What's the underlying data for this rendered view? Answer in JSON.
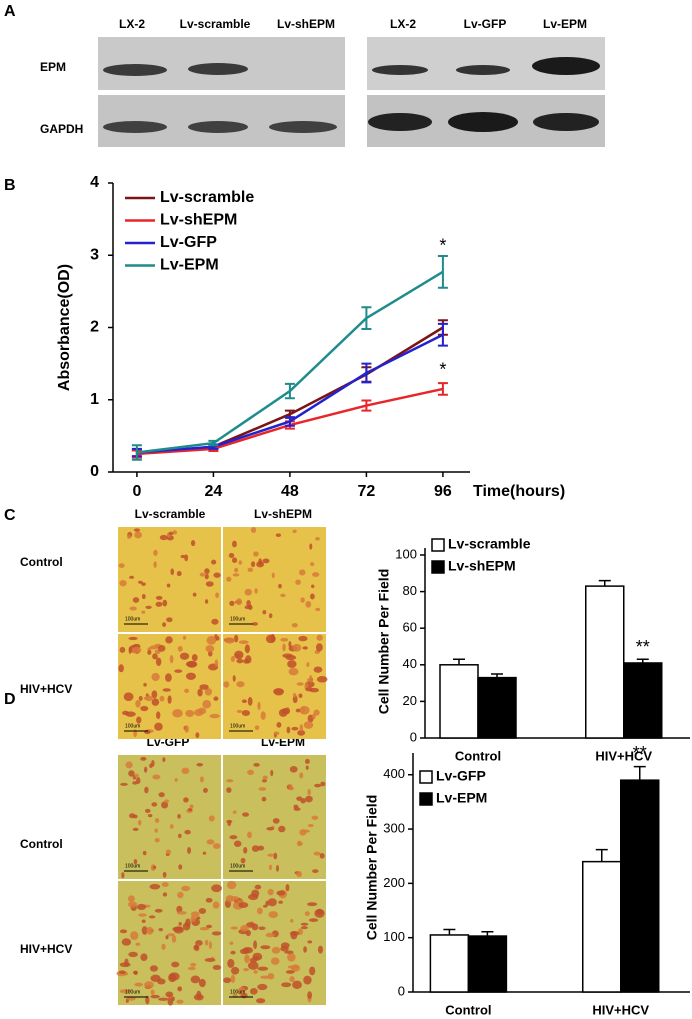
{
  "panel_labels": [
    "A",
    "B",
    "C",
    "D"
  ],
  "blot_a": {
    "rows": [
      "EPM",
      "GAPDH"
    ],
    "left_lanes": [
      "LX-2",
      "Lv-scramble",
      "Lv-shEPM"
    ],
    "right_lanes": [
      "LX-2",
      "Lv-GFP",
      "Lv-EPM"
    ]
  },
  "micro_c": {
    "columns": [
      "Lv-scramble",
      "Lv-shEPM"
    ],
    "rows": [
      "Control",
      "HIV+HCV"
    ],
    "scale_bar": "100um"
  },
  "micro_d": {
    "columns": [
      "Lv-GFP",
      "Lv-EPM"
    ],
    "rows": [
      "Control",
      "HIV+HCV"
    ],
    "scale_bar": "100um"
  },
  "chart_data": [
    {
      "type": "line",
      "x_label": "Time(hours)",
      "y_label": "Absorbance(OD)",
      "x": [
        0,
        24,
        48,
        72,
        96
      ],
      "xlim": [
        -7.5,
        104.5
      ],
      "xticks": [
        0,
        24,
        48,
        72,
        96
      ],
      "ylim": [
        0,
        4
      ],
      "yticks": [
        0,
        1,
        2,
        3,
        4
      ],
      "series": [
        {
          "name": "Lv-scramble",
          "color": "#7b1416",
          "values": [
            0.25,
            0.35,
            0.8,
            1.35,
            2.0
          ],
          "errors": [
            0.05,
            0.03,
            0.05,
            0.1,
            0.1
          ]
        },
        {
          "name": "Lv-shEPM",
          "color": "#e8262a",
          "values": [
            0.25,
            0.32,
            0.65,
            0.92,
            1.15
          ],
          "errors": [
            0.05,
            0.03,
            0.05,
            0.07,
            0.08
          ]
        },
        {
          "name": "Lv-GFP",
          "color": "#2222d0",
          "values": [
            0.27,
            0.35,
            0.7,
            1.37,
            1.9
          ],
          "errors": [
            0.05,
            0.03,
            0.06,
            0.13,
            0.15
          ]
        },
        {
          "name": "Lv-EPM",
          "color": "#1f8c8c",
          "values": [
            0.27,
            0.4,
            1.12,
            2.13,
            2.77
          ],
          "errors": [
            0.1,
            0.03,
            0.1,
            0.15,
            0.22
          ]
        }
      ],
      "annotations": [
        {
          "text": "*",
          "x": 96,
          "y": 3.12
        },
        {
          "text": "*",
          "x": 96,
          "y": 1.4
        }
      ]
    },
    {
      "type": "bar",
      "y_label": "Cell Number Per Field",
      "categories": [
        "Control",
        "HIV+HCV"
      ],
      "ylim": [
        0,
        100
      ],
      "yticks": [
        0,
        20,
        40,
        60,
        80,
        100
      ],
      "series": [
        {
          "name": "Lv-scramble",
          "color": "#ffffff",
          "values": [
            40,
            83
          ],
          "errors": [
            3,
            3
          ]
        },
        {
          "name": "Lv-shEPM",
          "color": "#000000",
          "values": [
            33,
            41
          ],
          "errors": [
            2,
            2
          ]
        }
      ],
      "annotations": [
        {
          "text": "**",
          "category": "HIV+HCV",
          "series": "Lv-shEPM",
          "y": 49
        }
      ]
    },
    {
      "type": "bar",
      "y_label": "Cell Number Per Field",
      "categories": [
        "Control",
        "HIV+HCV"
      ],
      "ylim": [
        0,
        440
      ],
      "yticks": [
        0,
        100,
        200,
        300,
        400
      ],
      "series": [
        {
          "name": "Lv-GFP",
          "color": "#ffffff",
          "values": [
            105,
            240
          ],
          "errors": [
            10,
            22
          ]
        },
        {
          "name": "Lv-EPM",
          "color": "#000000",
          "values": [
            103,
            390
          ],
          "errors": [
            8,
            25
          ]
        }
      ],
      "annotations": [
        {
          "text": "**",
          "category": "HIV+HCV",
          "series": "Lv-EPM",
          "y": 438
        }
      ]
    }
  ]
}
